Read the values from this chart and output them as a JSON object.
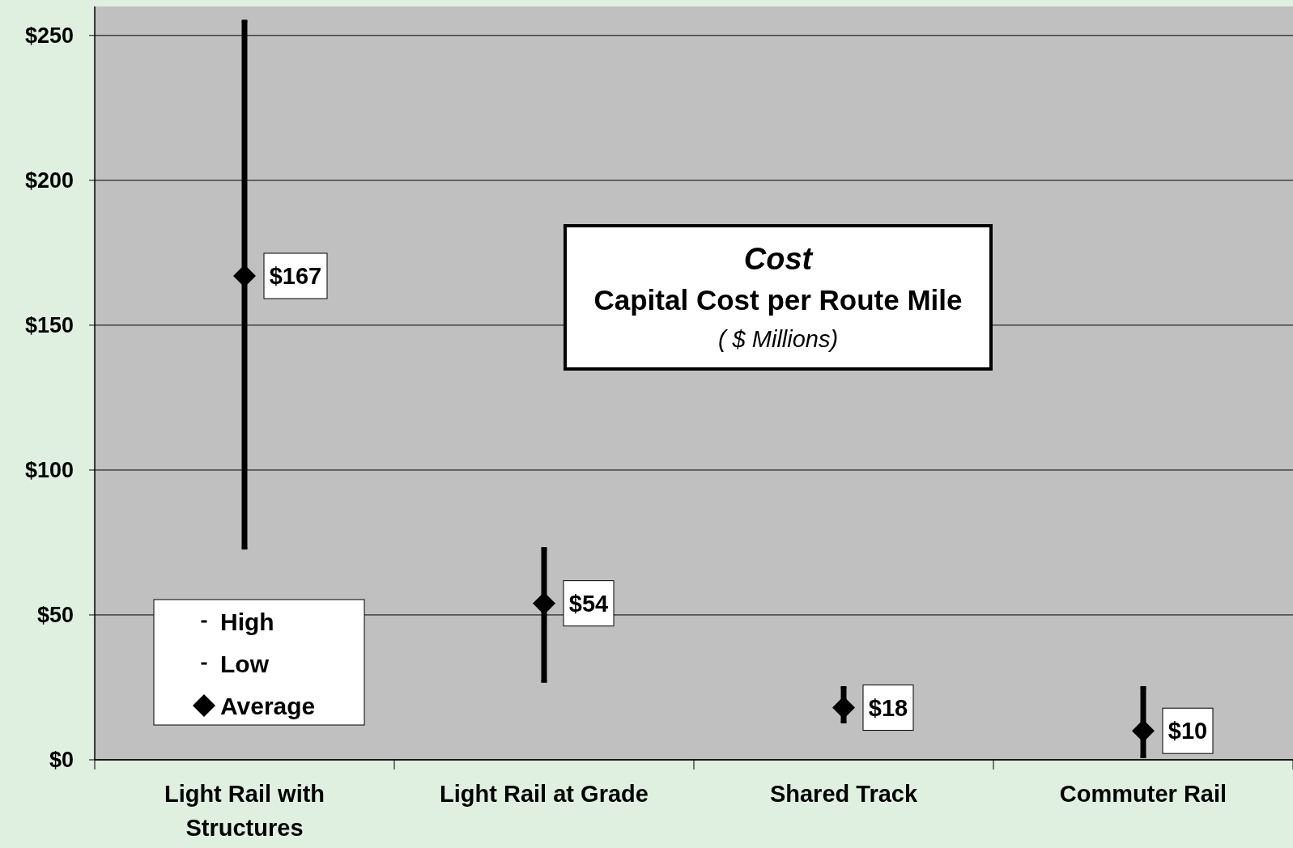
{
  "chart_data": {
    "type": "scatter",
    "title": "Cost",
    "subtitle": "Capital Cost per Route Mile",
    "annotations": [
      "( $ Millions)"
    ],
    "categories": [
      "Light Rail with Structures",
      "Light Rail at Grade",
      "Shared Track",
      "Commuter Rail"
    ],
    "series": [
      {
        "name": "High",
        "color": "#000000",
        "values": [
          255,
          73,
          25,
          25
        ]
      },
      {
        "name": "Low",
        "color": "#000000",
        "values": [
          73,
          27,
          13,
          1
        ]
      },
      {
        "name": "Average",
        "color": "#000000",
        "marker": "diamond",
        "values": [
          167,
          54,
          18,
          10
        ],
        "value_labels": [
          "$167",
          "$54",
          "$18",
          "$10"
        ]
      }
    ],
    "ylim": [
      0,
      260
    ],
    "yticks": [
      {
        "value": 0,
        "label": "$0"
      },
      {
        "value": 50,
        "label": "$50"
      },
      {
        "value": 100,
        "label": "$100"
      },
      {
        "value": 150,
        "label": "$150"
      },
      {
        "value": 200,
        "label": "$200"
      },
      {
        "value": 250,
        "label": "$250"
      }
    ],
    "grid": "y",
    "legend": "bottom left"
  }
}
